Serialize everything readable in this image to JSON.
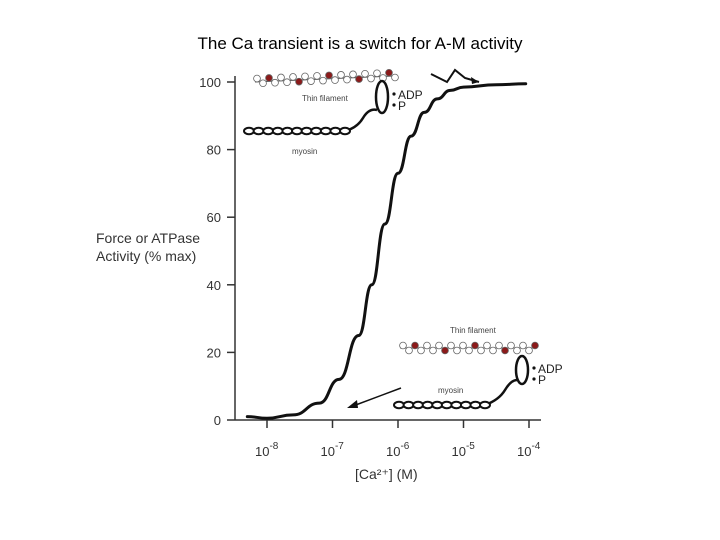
{
  "slide": {
    "title": "The Ca transient is a switch for A-M activity"
  },
  "chart_data": {
    "type": "line",
    "title": "The Ca transient is a switch for A-M activity",
    "ylabel_lines": [
      "Force or ATPase",
      "Activity (% max)"
    ],
    "xlabel": "[Ca²⁺] (M)",
    "x_scale": "log",
    "xlim_log10": [
      -8.5,
      -4
    ],
    "ylim": [
      0,
      100
    ],
    "yticks": [
      0,
      20,
      40,
      60,
      80,
      100
    ],
    "xticks": [
      {
        "base": "10",
        "exp": "-8",
        "log10": -8
      },
      {
        "base": "10",
        "exp": "-7",
        "log10": -7
      },
      {
        "base": "10",
        "exp": "-6",
        "log10": -6
      },
      {
        "base": "10",
        "exp": "-5",
        "log10": -5
      },
      {
        "base": "10",
        "exp": "-4",
        "log10": -4
      }
    ],
    "series": [
      {
        "name": "Force or ATPase activity",
        "points": [
          {
            "log10_ca": -8.3,
            "value": 1.0
          },
          {
            "log10_ca": -8.0,
            "value": 0.5
          },
          {
            "log10_ca": -7.6,
            "value": 1.5
          },
          {
            "log10_ca": -7.2,
            "value": 5
          },
          {
            "log10_ca": -6.9,
            "value": 12
          },
          {
            "log10_ca": -6.6,
            "value": 25
          },
          {
            "log10_ca": -6.4,
            "value": 40
          },
          {
            "log10_ca": -6.2,
            "value": 58
          },
          {
            "log10_ca": -6.0,
            "value": 73
          },
          {
            "log10_ca": -5.8,
            "value": 84
          },
          {
            "log10_ca": -5.6,
            "value": 91
          },
          {
            "log10_ca": -5.4,
            "value": 95
          },
          {
            "log10_ca": -5.2,
            "value": 97.5
          },
          {
            "log10_ca": -5.0,
            "value": 98.5
          },
          {
            "log10_ca": -4.5,
            "value": 99.2
          },
          {
            "log10_ca": -4.05,
            "value": 99.5
          }
        ]
      }
    ],
    "annotations": {
      "top": {
        "thin_filament": "Thin filament",
        "myosin": "myosin",
        "adp": "ADP",
        "p": "P"
      },
      "bottom": {
        "thin_filament": "Thin filament",
        "myosin": "myosin",
        "adp": "ADP",
        "p": "P"
      }
    }
  },
  "colors": {
    "curve": "#111111",
    "axis": "#333333",
    "actin_bead": "#ffffff",
    "actin_marker": "#8b1a1a"
  }
}
